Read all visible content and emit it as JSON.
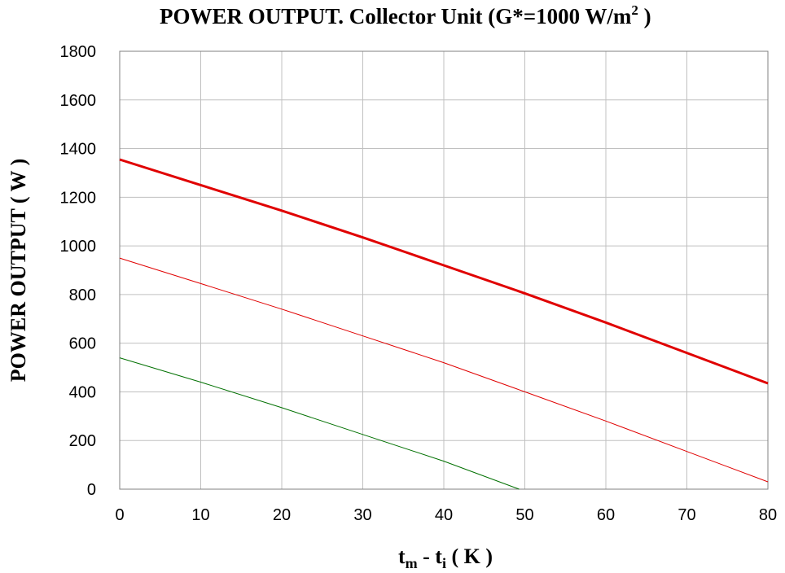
{
  "chart_data": {
    "type": "line",
    "title": {
      "main": "POWER OUTPUT. Collector Unit (G*=1000 W/m",
      "sup": "2",
      "end": " )"
    },
    "xlabel": {
      "t1": "t",
      "s1": "m",
      "mid": " - t",
      "s2": "i",
      "end": " ( K )"
    },
    "ylabel": "POWER OUTPUT ( W )",
    "xlim": [
      0,
      80
    ],
    "ylim": [
      0,
      1800
    ],
    "xticks": [
      0,
      10,
      20,
      30,
      40,
      50,
      60,
      70,
      80
    ],
    "yticks": [
      0,
      200,
      400,
      600,
      800,
      1000,
      1200,
      1400,
      1600,
      1800
    ],
    "grid": true,
    "series": [
      {
        "color": "#e00000",
        "stroke_width": 3,
        "x": [
          0,
          10,
          20,
          30,
          40,
          50,
          60,
          70,
          80
        ],
        "y": [
          1355,
          1250,
          1145,
          1035,
          920,
          805,
          685,
          560,
          435
        ]
      },
      {
        "color": "#e00000",
        "stroke_width": 1,
        "x": [
          0,
          10,
          20,
          30,
          40,
          50,
          60,
          70,
          80
        ],
        "y": [
          950,
          845,
          740,
          630,
          520,
          400,
          280,
          155,
          30
        ]
      },
      {
        "color": "#007000",
        "stroke_width": 1,
        "x": [
          0,
          10,
          20,
          30,
          40,
          49.3
        ],
        "y": [
          540,
          440,
          335,
          225,
          115,
          0
        ]
      }
    ]
  }
}
